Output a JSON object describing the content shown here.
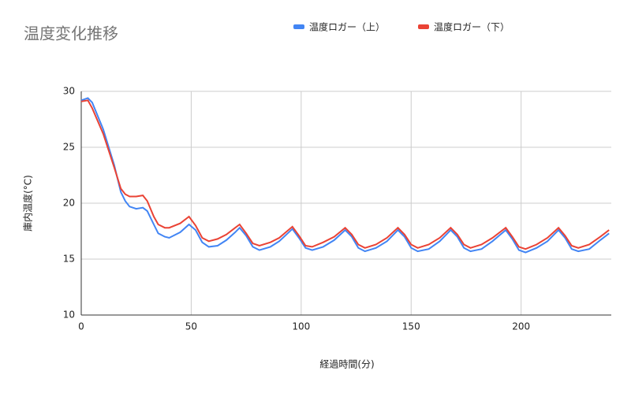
{
  "chart_data": {
    "type": "line",
    "title": "温度変化推移",
    "x_label": "経過時間(分)",
    "y_label": "庫内温度(°C)",
    "legend": "top",
    "grid": true,
    "xlim": [
      0,
      241
    ],
    "xticks": [
      0,
      50,
      100,
      150,
      200
    ],
    "ylim": [
      10,
      30
    ],
    "yticks": [
      10,
      15,
      20,
      25,
      30
    ],
    "x": [
      0,
      3,
      5,
      10,
      15,
      18,
      20,
      22,
      25,
      28,
      30,
      33,
      35,
      38,
      40,
      45,
      49,
      52,
      55,
      58,
      62,
      66,
      70,
      72,
      75,
      78,
      81,
      86,
      90,
      96,
      99,
      102,
      105,
      110,
      115,
      120,
      123,
      126,
      129,
      134,
      139,
      144,
      147,
      150,
      153,
      158,
      163,
      168,
      171,
      174,
      177,
      182,
      187,
      193,
      196,
      199,
      202,
      207,
      212,
      217,
      220,
      223,
      226,
      231,
      236,
      240
    ],
    "series": [
      {
        "name": "温度ロガー（上）",
        "color": "#4285f4",
        "values": [
          29.2,
          29.4,
          29.0,
          26.6,
          23.4,
          21.0,
          20.2,
          19.7,
          19.5,
          19.6,
          19.3,
          18.1,
          17.3,
          17.0,
          16.9,
          17.4,
          18.1,
          17.6,
          16.5,
          16.1,
          16.2,
          16.7,
          17.4,
          17.8,
          17.1,
          16.1,
          15.8,
          16.1,
          16.6,
          17.7,
          16.9,
          16.0,
          15.8,
          16.1,
          16.7,
          17.6,
          17.0,
          16.0,
          15.7,
          16.0,
          16.6,
          17.6,
          17.0,
          16.0,
          15.7,
          15.9,
          16.6,
          17.6,
          17.0,
          16.0,
          15.7,
          15.9,
          16.6,
          17.6,
          16.8,
          15.8,
          15.6,
          16.0,
          16.6,
          17.6,
          16.9,
          15.9,
          15.7,
          15.9,
          16.7,
          17.3
        ]
      },
      {
        "name": "温度ロガー（下）",
        "color": "#ea4335",
        "values": [
          29.1,
          29.2,
          28.5,
          26.2,
          23.2,
          21.3,
          20.8,
          20.6,
          20.6,
          20.7,
          20.2,
          18.8,
          18.1,
          17.8,
          17.8,
          18.2,
          18.8,
          18.0,
          16.9,
          16.6,
          16.8,
          17.2,
          17.8,
          18.1,
          17.3,
          16.4,
          16.2,
          16.5,
          16.9,
          17.9,
          17.1,
          16.2,
          16.1,
          16.5,
          17.0,
          17.8,
          17.2,
          16.3,
          16.0,
          16.3,
          16.9,
          17.8,
          17.2,
          16.3,
          16.0,
          16.3,
          16.9,
          17.8,
          17.2,
          16.3,
          16.0,
          16.3,
          16.9,
          17.8,
          17.0,
          16.1,
          15.9,
          16.3,
          16.9,
          17.8,
          17.1,
          16.2,
          16.0,
          16.3,
          17.0,
          17.6
        ]
      }
    ]
  }
}
